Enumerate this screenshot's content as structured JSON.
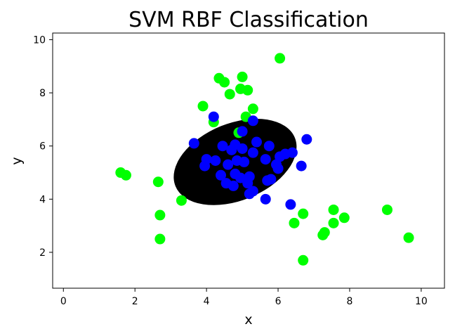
{
  "chart_data": {
    "type": "scatter",
    "title": "SVM RBF Classification",
    "xlabel": "x",
    "ylabel": "y",
    "xlim": [
      -0.3,
      10.65
    ],
    "ylim": [
      0.65,
      10.25
    ],
    "xticks": [
      "0",
      "2",
      "4",
      "6",
      "8",
      "10"
    ],
    "yticks": [
      "2",
      "4",
      "6",
      "8",
      "10"
    ],
    "decision_region": {
      "shape": "ellipse",
      "center": [
        4.8,
        5.4
      ],
      "radii": [
        1.8,
        1.45
      ],
      "rotation_deg": -22,
      "color": "#000000"
    },
    "series": [
      {
        "color": "#00ff00",
        "points": [
          [
            6.05,
            9.3
          ],
          [
            4.35,
            8.55
          ],
          [
            5.0,
            8.6
          ],
          [
            4.5,
            8.4
          ],
          [
            4.95,
            8.15
          ],
          [
            5.15,
            8.1
          ],
          [
            4.65,
            7.95
          ],
          [
            3.9,
            7.5
          ],
          [
            5.3,
            7.4
          ],
          [
            5.1,
            7.1
          ],
          [
            4.2,
            6.9
          ],
          [
            4.9,
            6.5
          ],
          [
            1.6,
            5.0
          ],
          [
            1.75,
            4.9
          ],
          [
            2.65,
            4.65
          ],
          [
            3.3,
            3.95
          ],
          [
            2.7,
            3.4
          ],
          [
            2.7,
            2.5
          ],
          [
            6.7,
            3.45
          ],
          [
            6.45,
            3.1
          ],
          [
            6.7,
            1.7
          ],
          [
            7.55,
            3.6
          ],
          [
            7.55,
            3.1
          ],
          [
            7.85,
            3.3
          ],
          [
            7.25,
            2.65
          ],
          [
            7.3,
            2.75
          ],
          [
            9.05,
            3.6
          ],
          [
            9.65,
            2.55
          ]
        ]
      },
      {
        "color": "#0000ff",
        "points": [
          [
            4.2,
            7.1
          ],
          [
            5.3,
            6.95
          ],
          [
            5.0,
            6.55
          ],
          [
            6.8,
            6.25
          ],
          [
            3.65,
            6.1
          ],
          [
            4.45,
            6.0
          ],
          [
            4.8,
            6.05
          ],
          [
            4.7,
            5.85
          ],
          [
            5.0,
            5.9
          ],
          [
            5.4,
            6.15
          ],
          [
            5.75,
            6.0
          ],
          [
            5.3,
            5.75
          ],
          [
            6.05,
            5.6
          ],
          [
            6.2,
            5.7
          ],
          [
            6.4,
            5.75
          ],
          [
            4.0,
            5.5
          ],
          [
            4.25,
            5.45
          ],
          [
            4.6,
            5.3
          ],
          [
            4.85,
            5.45
          ],
          [
            5.05,
            5.4
          ],
          [
            5.65,
            5.5
          ],
          [
            5.95,
            5.3
          ],
          [
            6.0,
            5.15
          ],
          [
            6.65,
            5.25
          ],
          [
            3.95,
            5.25
          ],
          [
            4.4,
            4.9
          ],
          [
            4.8,
            4.95
          ],
          [
            4.95,
            4.8
          ],
          [
            5.2,
            4.85
          ],
          [
            4.55,
            4.6
          ],
          [
            4.75,
            4.5
          ],
          [
            5.15,
            4.6
          ],
          [
            5.3,
            4.3
          ],
          [
            5.2,
            4.2
          ],
          [
            5.7,
            4.7
          ],
          [
            5.8,
            4.75
          ],
          [
            5.65,
            4.0
          ],
          [
            6.35,
            3.8
          ]
        ]
      }
    ]
  }
}
